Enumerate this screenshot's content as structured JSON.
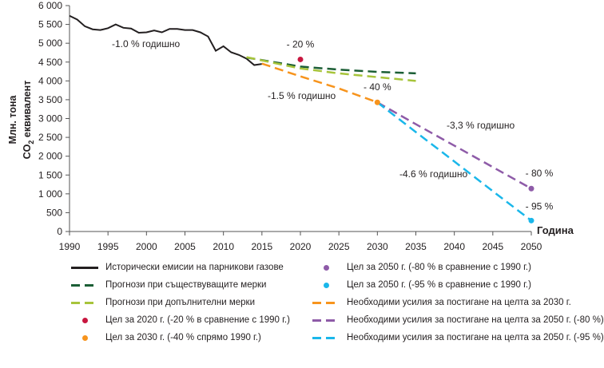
{
  "chart_data": {
    "type": "line",
    "ylabel_line1": "Млн. тона",
    "ylabel_line2": "CO",
    "ylabel_sub": "2",
    "ylabel_line2_rest": " еквивалент",
    "xlabel": "Година",
    "xlim": [
      1990,
      2050
    ],
    "ylim": [
      0,
      6000
    ],
    "xticks": [
      1990,
      1995,
      2000,
      2005,
      2010,
      2015,
      2020,
      2025,
      2030,
      2035,
      2040,
      2045,
      2050
    ],
    "yticks": [
      0,
      500,
      1000,
      1500,
      2000,
      2500,
      3000,
      3500,
      4000,
      4500,
      5000,
      5500,
      6000
    ],
    "ytick_labels": [
      "0",
      "500",
      "1 000",
      "1 500",
      "2 000",
      "2 500",
      "3 000",
      "3 500",
      "4 000",
      "4 500",
      "5 000",
      "5 500",
      "6 000"
    ],
    "series": [
      {
        "name": "Исторически емисии на парникови газове",
        "color": "#231f20",
        "dash": false,
        "x": [
          1990,
          1991,
          1992,
          1993,
          1994,
          1995,
          1996,
          1997,
          1998,
          1999,
          2000,
          2001,
          2002,
          2003,
          2004,
          2005,
          2006,
          2007,
          2008,
          2009,
          2010,
          2011,
          2012,
          2013,
          2014,
          2015
        ],
        "y": [
          5730,
          5630,
          5450,
          5370,
          5350,
          5400,
          5500,
          5410,
          5390,
          5280,
          5290,
          5340,
          5290,
          5380,
          5380,
          5350,
          5350,
          5290,
          5180,
          4800,
          4920,
          4760,
          4690,
          4590,
          4420,
          4450
        ]
      },
      {
        "name": "Прогнози при съществуващите мерки",
        "color": "#1b5e35",
        "dash": true,
        "x": [
          2013,
          2020,
          2025,
          2030,
          2035
        ],
        "y": [
          4620,
          4380,
          4300,
          4240,
          4200
        ]
      },
      {
        "name": "Прогнози при допълнителни мерки",
        "color": "#a7c43b",
        "dash": true,
        "x": [
          2013,
          2020,
          2025,
          2030,
          2035
        ],
        "y": [
          4630,
          4330,
          4200,
          4100,
          4000
        ]
      },
      {
        "name": "Необходими усилия за постигане на целта за 2030 г.",
        "color": "#f7941d",
        "dash": true,
        "x": [
          2015,
          2020,
          2025,
          2030
        ],
        "y": [
          4460,
          4120,
          3800,
          3430
        ]
      },
      {
        "name": "Необходими усилия за постигане на целта за 2050 г. (-80 %)",
        "color": "#8e5ba8",
        "dash": true,
        "x": [
          2030,
          2035,
          2040,
          2045,
          2050
        ],
        "y": [
          3430,
          2850,
          2280,
          1710,
          1140
        ]
      },
      {
        "name": "Необходими усилия за постигане на целта за 2050 г. (-95 %)",
        "color": "#1ab7ea",
        "dash": true,
        "x": [
          2030,
          2035,
          2040,
          2045,
          2050
        ],
        "y": [
          3430,
          2640,
          1860,
          1070,
          290
        ]
      }
    ],
    "points": [
      {
        "name": "Цел за 2020 г. (-20 % в сравнение с 1990 г.)",
        "color": "#c8163f",
        "x": 2020,
        "y": 4570,
        "label": "- 20 %"
      },
      {
        "name": "Цел за 2030 г. (-40 % спрямо 1990 г.)",
        "color": "#f7941d",
        "x": 2030,
        "y": 3430,
        "label": "- 40 %"
      },
      {
        "name": "Цел за 2050 г. (-80 % в сравнение с 1990 г.)",
        "color": "#8e5ba8",
        "x": 2050,
        "y": 1140,
        "label": "- 80 %"
      },
      {
        "name": "Цел за 2050 г. (-95 % в сравнение с 1990 г.)",
        "color": "#1ab7ea",
        "x": 2050,
        "y": 290,
        "label": "- 95 %"
      }
    ],
    "annotations": [
      "-1.0 % годишно",
      "-1.5 % годишно",
      "-3,3 % годишно",
      "-4.6 % годишно"
    ]
  }
}
